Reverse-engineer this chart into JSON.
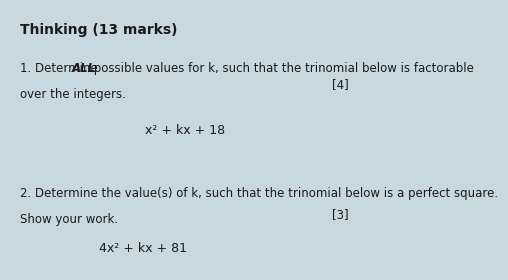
{
  "background_color": "#c8d8e0",
  "title": "Thinking (13 marks)",
  "q1_line2": "over the integers.",
  "q1_marks": "[4]",
  "q1_formula": "x² + kx + 18",
  "q2_label": "2. Determine the value(s) of k, such that the trinomial below is a perfect square.",
  "q2_line2": "Show your work.",
  "q2_marks": "[3]",
  "q2_formula": "4x² + kx + 81",
  "text_color": "#1a1a1a",
  "font_size_title": 10,
  "font_size_body": 8.5,
  "font_size_formula": 9
}
